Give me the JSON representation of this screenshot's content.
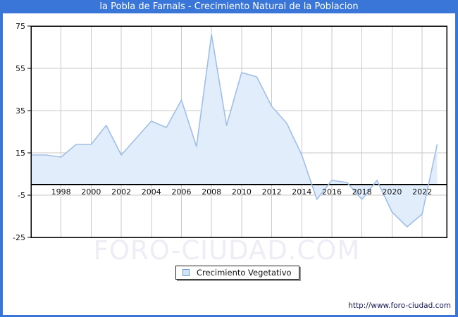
{
  "title": "la Pobla de Farnals - Crecimiento Natural de la Poblacion",
  "watermark": "FORO-CIUDAD.COM",
  "legend": {
    "label": "Crecimiento Vegetativo"
  },
  "footer": {
    "url": "http://www.foro-ciudad.com"
  },
  "colors": {
    "titlebar_bg": "#3a76d8",
    "border": "#3a76d8",
    "line": "#a0bfe6",
    "area_fill": "#e1edfa",
    "grid": "#c9c9c9",
    "axis": "#000000",
    "tick_text": "#111111",
    "watermark_text": "#ededf6",
    "url_text": "#16165e"
  },
  "chart_data": {
    "type": "area",
    "title": "la Pobla de Farnals - Crecimiento Natural de la Poblacion",
    "xlabel": "",
    "ylabel": "",
    "x": [
      1996,
      1997,
      1998,
      1999,
      2000,
      2001,
      2002,
      2003,
      2004,
      2005,
      2006,
      2007,
      2008,
      2009,
      2010,
      2011,
      2012,
      2013,
      2014,
      2015,
      2016,
      2017,
      2018,
      2019,
      2020,
      2021,
      2022,
      2023
    ],
    "series": [
      {
        "name": "Crecimiento Vegetativo",
        "values": [
          14,
          14,
          13,
          19,
          19,
          28,
          14,
          22,
          30,
          27,
          40,
          18,
          71,
          28,
          53,
          51,
          37,
          29,
          14,
          -7,
          2,
          1,
          -7,
          2,
          -13,
          -20,
          -14,
          19
        ]
      }
    ],
    "baseline": 0,
    "ylim": [
      -25,
      75
    ],
    "yticks": [
      75,
      55,
      35,
      15,
      -5,
      -25
    ],
    "xticks": [
      1998,
      2000,
      2002,
      2004,
      2006,
      2008,
      2010,
      2012,
      2014,
      2016,
      2018,
      2020,
      2022
    ],
    "grid": true,
    "legend_position": "bottom-center"
  }
}
